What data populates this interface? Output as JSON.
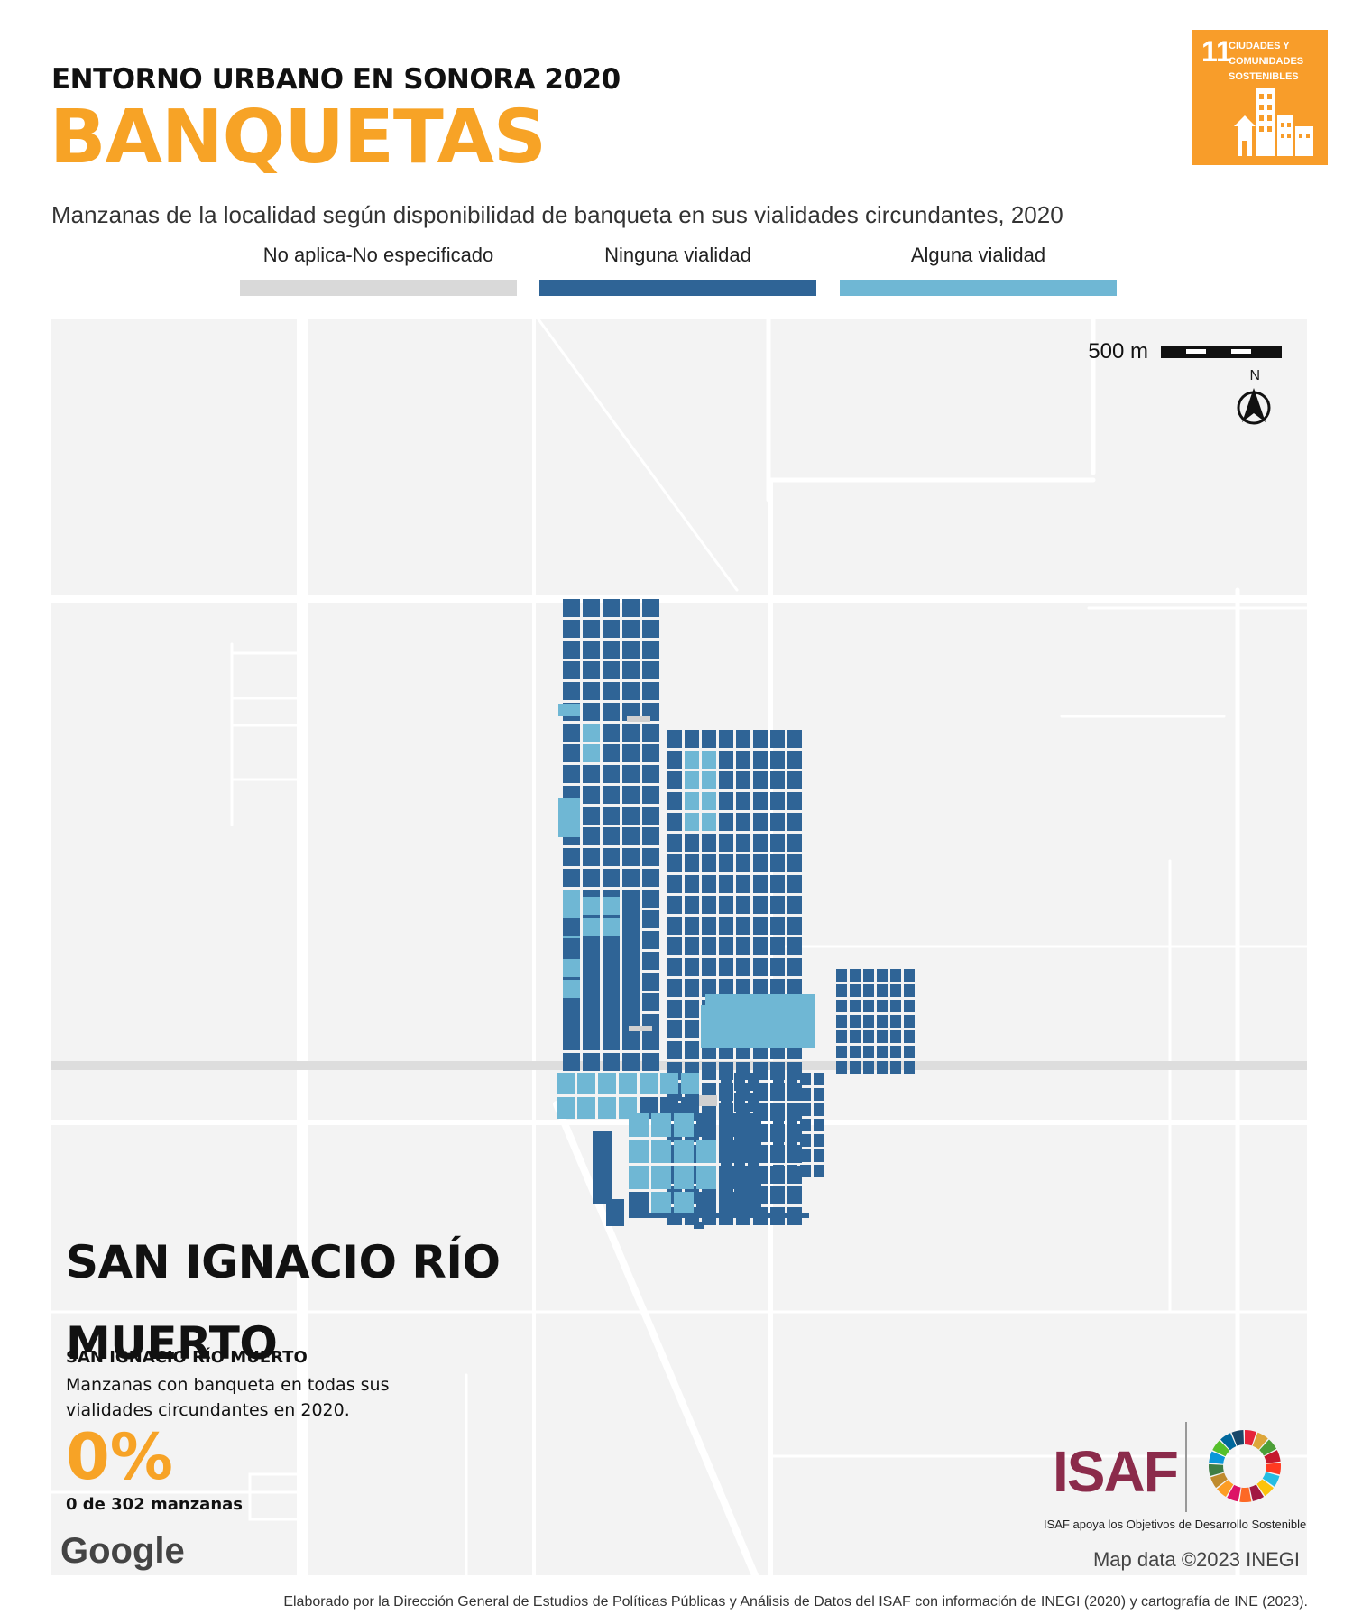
{
  "header": {
    "kicker": "ENTORNO URBANO EN SONORA 2020",
    "headline": "BANQUETAS",
    "subtitle": "Manzanas de la localidad según disponibilidad de banqueta en sus vialidades circundantes, 2020"
  },
  "legend": [
    {
      "label": "No aplica-No especificado",
      "color": "#d9d9d9"
    },
    {
      "label": "Ninguna vialidad",
      "color": "#2f6496"
    },
    {
      "label": "Alguna vialidad",
      "color": "#6fb7d4"
    }
  ],
  "sdg_badge": {
    "number": "11",
    "text": "CIUDADES Y COMUNIDADES SOSTENIBLES",
    "color": "#f89d2a"
  },
  "map": {
    "scale_label": "500 m",
    "north_label": "N",
    "map_data_text": "Map data ©2023 INEGI",
    "google_text": "Google",
    "background": "#f3f3f3"
  },
  "locality": {
    "title": "SAN IGNACIO RÍO MUERTO",
    "subtitle": "SAN IGNACIO RÍO MUERTO",
    "description": "Manzanas con banqueta en todas sus vialidades circundantes en 2020.",
    "percent": "0%",
    "count": "0 de 302 manzanas"
  },
  "logos": {
    "isaf_text": "ISAF",
    "isaf_caption": "ISAF apoya los Objetivos de Desarrollo Sostenible"
  },
  "footer": "Elaborado por la Dirección General de Estudios de Políticas Públicas y Análisis de Datos del ISAF con información de INEGI (2020) y cartografía de INE (2023)."
}
